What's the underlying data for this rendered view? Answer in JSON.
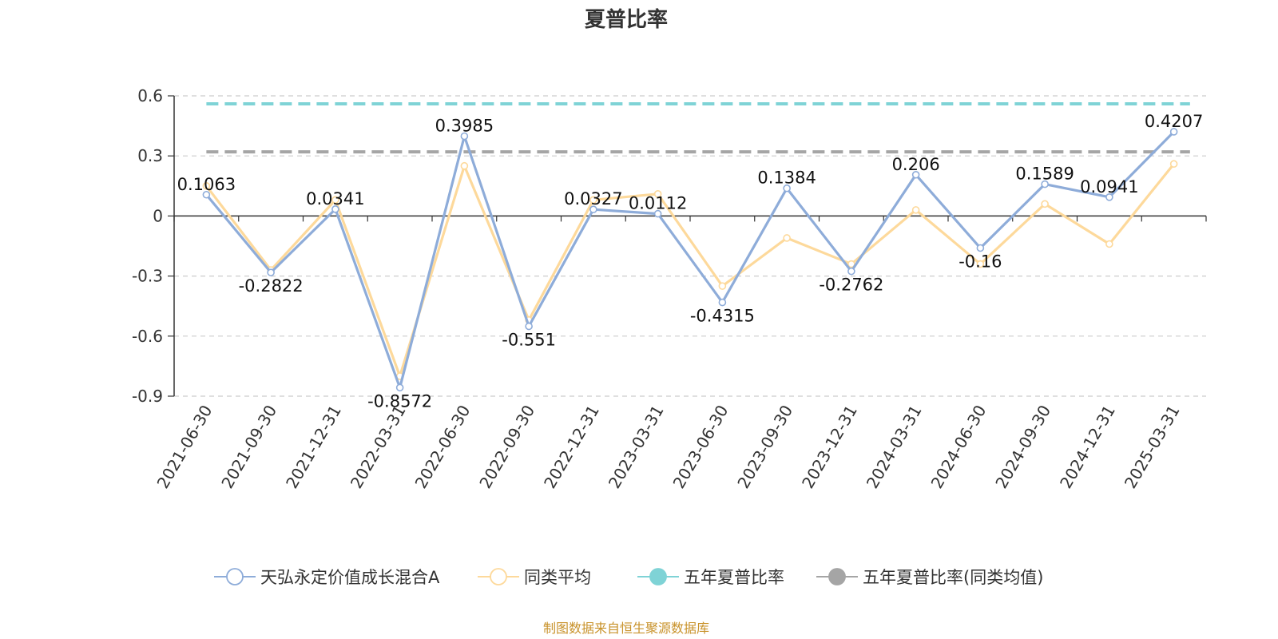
{
  "chart_data": {
    "type": "line",
    "title": "夏普比率",
    "categories": [
      "2021-06-30",
      "2021-09-30",
      "2021-12-31",
      "2022-03-31",
      "2022-06-30",
      "2022-09-30",
      "2022-12-31",
      "2023-03-31",
      "2023-06-30",
      "2023-09-30",
      "2023-12-31",
      "2024-03-31",
      "2024-06-30",
      "2024-09-30",
      "2024-12-31",
      "2025-03-31"
    ],
    "ylim": [
      -0.9,
      0.6
    ],
    "yticks": [
      0.6,
      0.3,
      0,
      -0.3,
      -0.6,
      -0.9
    ],
    "ytick_labels": [
      "0.6",
      "0.3",
      "0",
      "-0.3",
      "-0.6",
      "-0.9"
    ],
    "grid": true,
    "legend_position": "bottom",
    "series": [
      {
        "name": "天弘永定价值成长混合A",
        "color": "#8eacd9",
        "values": [
          0.1063,
          -0.2822,
          0.0341,
          -0.8572,
          0.3985,
          -0.551,
          0.0327,
          0.0112,
          -0.4315,
          0.1384,
          -0.2762,
          0.206,
          -0.16,
          0.1589,
          0.0941,
          0.4207
        ],
        "labels": [
          "0.1063",
          "-0.2822",
          "0.0341",
          "-0.8572",
          "0.3985",
          "-0.551",
          "0.0327",
          "0.0112",
          "-0.4315",
          "0.1384",
          "-0.2762",
          "0.206",
          "-0.16",
          "0.1589",
          "0.0941",
          "0.4207"
        ]
      },
      {
        "name": "同类平均",
        "color": "#fdd99b",
        "values": [
          0.15,
          -0.27,
          0.08,
          -0.8,
          0.25,
          -0.52,
          0.08,
          0.11,
          -0.35,
          -0.11,
          -0.24,
          0.03,
          -0.24,
          0.06,
          -0.14,
          0.26
        ]
      },
      {
        "name": "五年夏普比率",
        "color": "#7fd3d6",
        "constant": 0.56,
        "dashed": true
      },
      {
        "name": "五年夏普比率(同类均值)",
        "color": "#a5a5a5",
        "constant": 0.32,
        "dashed": true
      }
    ]
  },
  "source_note": "制图数据来自恒生聚源数据库"
}
